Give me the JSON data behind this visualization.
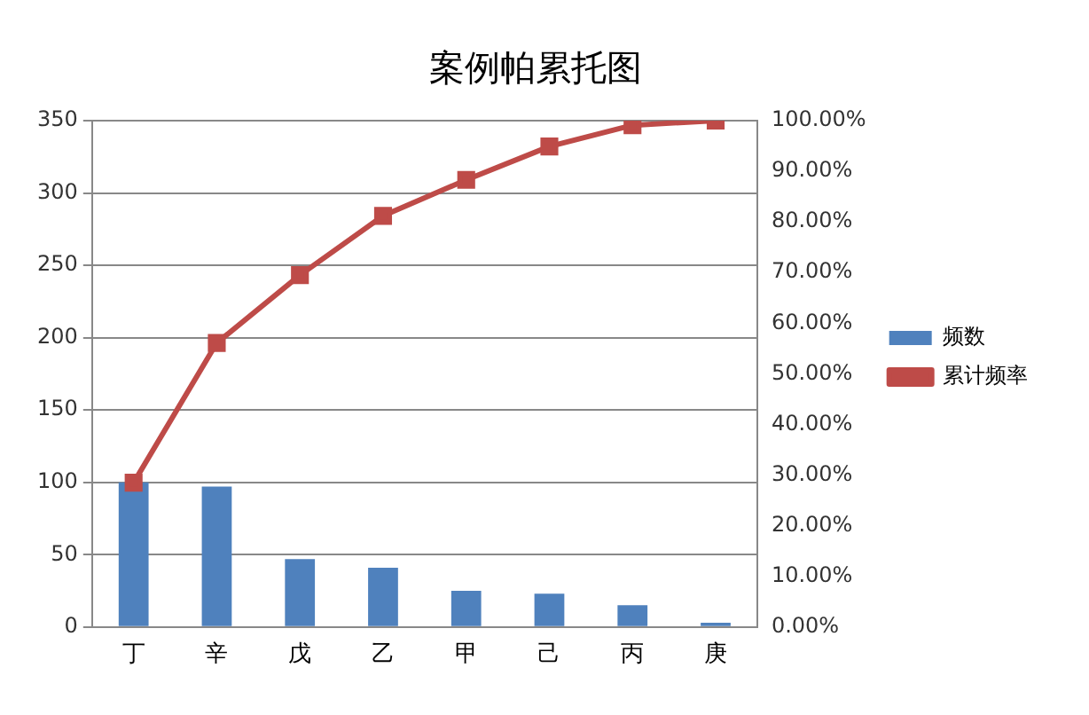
{
  "chart_data": {
    "type": "bar",
    "title": "案例帕累托图",
    "categories": [
      "丁",
      "辛",
      "戊",
      "乙",
      "甲",
      "己",
      "丙",
      "庚"
    ],
    "series": [
      {
        "name": "频数",
        "color": "#4f81bd",
        "values": [
          100,
          97,
          47,
          41,
          25,
          23,
          15,
          3
        ]
      },
      {
        "name": "累计频率",
        "type": "line",
        "axis": "y2",
        "color": "#be4b48",
        "marker": "square",
        "values": [
          28.5,
          56.1,
          69.5,
          81.2,
          88.3,
          94.9,
          99.1,
          100
        ]
      }
    ],
    "ylim": [
      0,
      350
    ],
    "yticks": [
      0,
      50,
      100,
      150,
      200,
      250,
      300,
      350
    ],
    "y2lim": [
      0,
      100
    ],
    "y2ticks": [
      {
        "value": 0,
        "label": "0.00%"
      },
      {
        "value": 10,
        "label": "10.00%"
      },
      {
        "value": 20,
        "label": "20.00%"
      },
      {
        "value": 30,
        "label": "30.00%"
      },
      {
        "value": 40,
        "label": "40.00%"
      },
      {
        "value": 50,
        "label": "50.00%"
      },
      {
        "value": 60,
        "label": "60.00%"
      },
      {
        "value": 70,
        "label": "70.00%"
      },
      {
        "value": 80,
        "label": "80.00%"
      },
      {
        "value": 90,
        "label": "90.00%"
      },
      {
        "value": 100,
        "label": "100.00%"
      }
    ],
    "grid": "y",
    "legend": "right"
  }
}
